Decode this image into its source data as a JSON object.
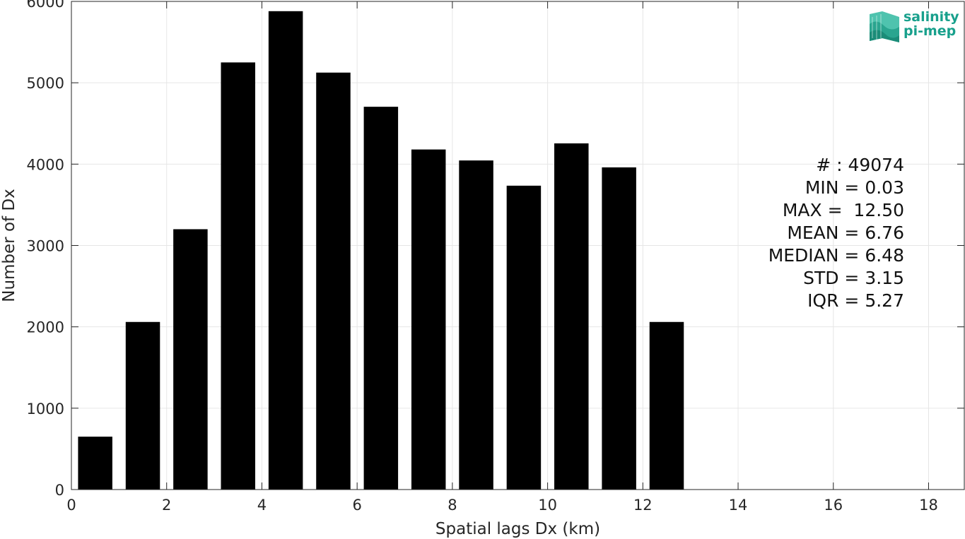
{
  "chart_data": {
    "type": "bar",
    "xlabel": "Spatial lags Dx (km)",
    "ylabel": "Number of Dx",
    "xlim": [
      0,
      18.75
    ],
    "ylim": [
      0,
      6000
    ],
    "xticks": [
      0,
      2,
      4,
      6,
      8,
      10,
      12,
      14,
      16,
      18
    ],
    "yticks": [
      0,
      1000,
      2000,
      3000,
      4000,
      5000,
      6000
    ],
    "bar_width": 0.72,
    "grid": true,
    "x": [
      0.5,
      1.5,
      2.5,
      3.5,
      4.5,
      5.5,
      6.5,
      7.5,
      8.5,
      9.5,
      10.5,
      11.5,
      12.5
    ],
    "values": [
      650,
      2060,
      3200,
      5250,
      5880,
      5125,
      4705,
      4180,
      4045,
      3735,
      4255,
      3960,
      2060
    ],
    "bar_color": "#000000"
  },
  "stats": [
    "# : 49074",
    "MIN = 0.03",
    "MAX =  12.50",
    "MEAN = 6.76",
    "MEDIAN = 6.48",
    "STD = 3.15",
    "IQR = 5.27"
  ],
  "logo": {
    "line1": "salinity",
    "line2": "pi-mep",
    "color": "#18a08c"
  }
}
